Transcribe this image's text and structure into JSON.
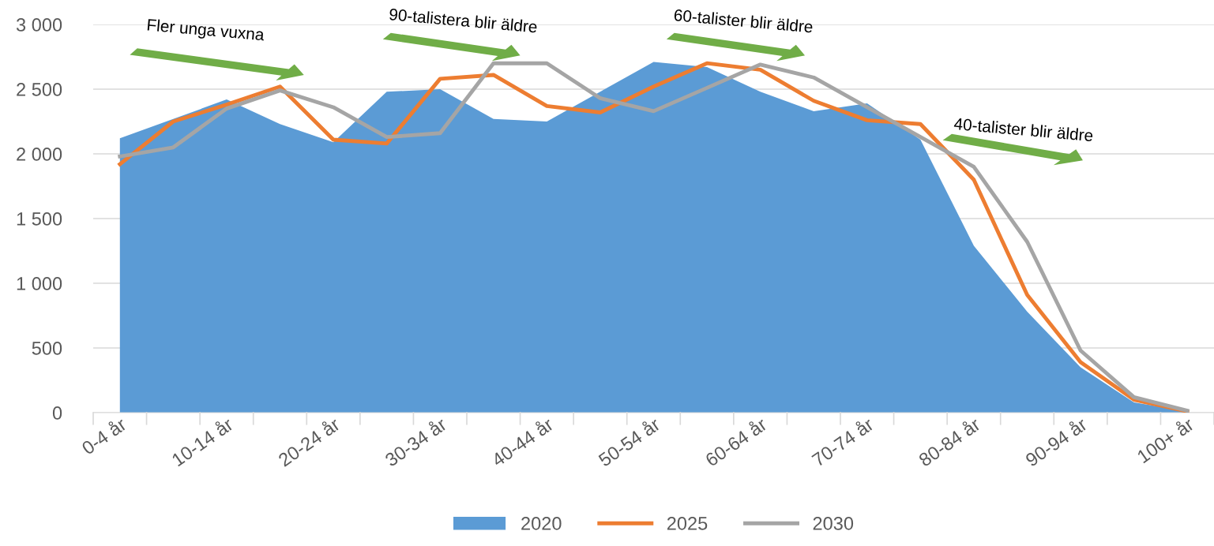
{
  "chart_data": {
    "type": "line",
    "categories": [
      "0-4 år",
      null,
      "10-14 år",
      null,
      "20-24 år",
      null,
      "30-34 år",
      null,
      "40-44 år",
      null,
      "50-54 år",
      null,
      "60-64 år",
      null,
      "70-74 år",
      null,
      "80-84 år",
      null,
      "90-94 år",
      null,
      "100+ år"
    ],
    "series": [
      {
        "name": "2020",
        "type": "area",
        "color": "#5b9bd5",
        "values": [
          2120,
          2270,
          2420,
          2230,
          2090,
          2480,
          2500,
          2270,
          2250,
          2480,
          2710,
          2670,
          2480,
          2330,
          2390,
          2110,
          1290,
          780,
          350,
          80,
          10
        ]
      },
      {
        "name": "2025",
        "color": "#ed7d31",
        "values": [
          1920,
          2250,
          2380,
          2520,
          2110,
          2080,
          2580,
          2610,
          2370,
          2320,
          2520,
          2700,
          2650,
          2410,
          2260,
          2230,
          1800,
          910,
          390,
          100,
          10
        ]
      },
      {
        "name": "2030",
        "color": "#a5a5a5",
        "values": [
          1980,
          2050,
          2350,
          2490,
          2360,
          2130,
          2160,
          2700,
          2700,
          2430,
          2330,
          2510,
          2690,
          2590,
          2360,
          2130,
          1900,
          1320,
          480,
          120,
          15
        ]
      }
    ],
    "ylim": [
      0,
      3000
    ],
    "yticks": [
      {
        "value": 0,
        "label": "0"
      },
      {
        "value": 500,
        "label": "500"
      },
      {
        "value": 1000,
        "label": "1 000"
      },
      {
        "value": 1500,
        "label": "1 500"
      },
      {
        "value": 2000,
        "label": "2 000"
      },
      {
        "value": 2500,
        "label": "2 500"
      },
      {
        "value": 3000,
        "label": "3 000"
      }
    ],
    "grid": "y",
    "legend": "bottom",
    "line_style": "solid",
    "marker": "none",
    "annotations": [
      "Fler unga vuxna",
      "90-talistera blir äldre",
      "60-talister blir äldre",
      "40-talister blir äldre"
    ]
  }
}
